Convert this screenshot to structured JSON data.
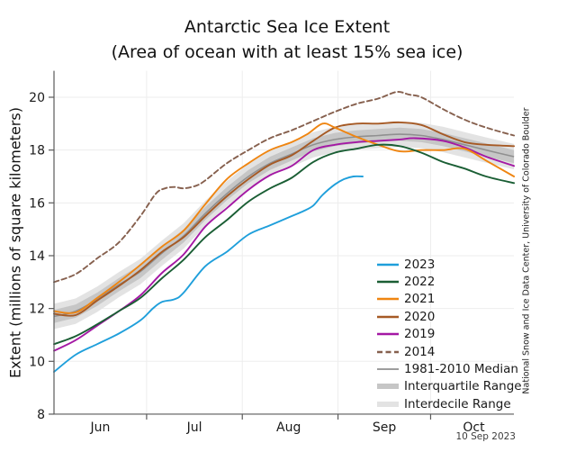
{
  "chart": {
    "title": "Antarctic Sea Ice Extent",
    "subtitle": "(Area of ocean with at least 15% sea ice)",
    "y_axis_label": "Extent (millions of square kilometers)",
    "credit": "National Snow and Ice Data Center, University of Colorado Boulder",
    "date_label": "10 Sep 2023"
  },
  "colors": {
    "y2023": "#1f9fdb",
    "y2022": "#1a5e34",
    "y2021": "#ef8511",
    "y2020": "#a65a25",
    "y2019": "#a418a4",
    "y2014": "#86604e",
    "median": "#909090",
    "interquartile": "#c6c6c6",
    "interdecile": "#e3e3e3",
    "grid": "#ededed",
    "spine": "#5a5a5a",
    "text": "#1a1a1a"
  },
  "chart_data": {
    "type": "line",
    "title": "Antarctic Sea Ice Extent (Area of ocean with at least 15% sea ice)",
    "ylabel": "Extent (millions of square kilometers)",
    "x_units": "days since Jun 1",
    "xlim": [
      0,
      149
    ],
    "ylim": [
      8,
      21
    ],
    "grid": true,
    "y_ticks": [
      8,
      10,
      12,
      14,
      16,
      18,
      20
    ],
    "month_boundary_ticks": [
      30,
      61,
      92,
      122
    ],
    "month_labels": [
      {
        "text": "Jun",
        "d": 15
      },
      {
        "text": "Jul",
        "d": 45.5
      },
      {
        "text": "Aug",
        "d": 76
      },
      {
        "text": "Sep",
        "d": 107
      },
      {
        "text": "Oct",
        "d": 136
      }
    ],
    "band_offsets": {
      "interquartile": 0.25,
      "interdecile": 0.48
    },
    "median_series": {
      "name": "1981-2010 Median",
      "points": [
        [
          0,
          11.7
        ],
        [
          7,
          11.9
        ],
        [
          14,
          12.35
        ],
        [
          21,
          12.9
        ],
        [
          28,
          13.4
        ],
        [
          35,
          14.1
        ],
        [
          42,
          14.75
        ],
        [
          49,
          15.6
        ],
        [
          56,
          16.35
        ],
        [
          63,
          17.0
        ],
        [
          70,
          17.5
        ],
        [
          77,
          17.85
        ],
        [
          84,
          18.2
        ],
        [
          91,
          18.4
        ],
        [
          98,
          18.5
        ],
        [
          105,
          18.55
        ],
        [
          112,
          18.6
        ],
        [
          119,
          18.55
        ],
        [
          126,
          18.4
        ],
        [
          133,
          18.2
        ],
        [
          140,
          18.0
        ],
        [
          149,
          17.75
        ]
      ]
    },
    "series": [
      {
        "name": "2014",
        "color_key": "y2014",
        "dashed": true,
        "points": [
          [
            0,
            13.0
          ],
          [
            7,
            13.3
          ],
          [
            14,
            13.9
          ],
          [
            21,
            14.5
          ],
          [
            28,
            15.5
          ],
          [
            33,
            16.35
          ],
          [
            36,
            16.55
          ],
          [
            39,
            16.6
          ],
          [
            42,
            16.55
          ],
          [
            46,
            16.65
          ],
          [
            49,
            16.85
          ],
          [
            56,
            17.5
          ],
          [
            63,
            18.0
          ],
          [
            70,
            18.45
          ],
          [
            77,
            18.75
          ],
          [
            84,
            19.1
          ],
          [
            91,
            19.45
          ],
          [
            98,
            19.75
          ],
          [
            105,
            19.95
          ],
          [
            111,
            20.2
          ],
          [
            115,
            20.1
          ],
          [
            119,
            20.0
          ],
          [
            126,
            19.55
          ],
          [
            133,
            19.15
          ],
          [
            140,
            18.85
          ],
          [
            149,
            18.55
          ]
        ]
      },
      {
        "name": "2019",
        "color_key": "y2019",
        "dashed": false,
        "points": [
          [
            0,
            10.4
          ],
          [
            7,
            10.8
          ],
          [
            14,
            11.35
          ],
          [
            21,
            11.9
          ],
          [
            28,
            12.5
          ],
          [
            35,
            13.35
          ],
          [
            42,
            14.05
          ],
          [
            49,
            15.1
          ],
          [
            56,
            15.8
          ],
          [
            63,
            16.5
          ],
          [
            70,
            17.05
          ],
          [
            77,
            17.4
          ],
          [
            84,
            18.0
          ],
          [
            91,
            18.2
          ],
          [
            98,
            18.3
          ],
          [
            105,
            18.35
          ],
          [
            112,
            18.4
          ],
          [
            117,
            18.45
          ],
          [
            126,
            18.35
          ],
          [
            133,
            18.1
          ],
          [
            140,
            17.75
          ],
          [
            149,
            17.4
          ]
        ]
      },
      {
        "name": "2020",
        "color_key": "y2020",
        "dashed": false,
        "points": [
          [
            0,
            11.8
          ],
          [
            7,
            11.75
          ],
          [
            14,
            12.3
          ],
          [
            21,
            12.85
          ],
          [
            28,
            13.45
          ],
          [
            35,
            14.15
          ],
          [
            42,
            14.7
          ],
          [
            49,
            15.5
          ],
          [
            56,
            16.25
          ],
          [
            63,
            16.9
          ],
          [
            70,
            17.45
          ],
          [
            77,
            17.8
          ],
          [
            84,
            18.35
          ],
          [
            91,
            18.85
          ],
          [
            98,
            19.0
          ],
          [
            105,
            19.0
          ],
          [
            112,
            19.05
          ],
          [
            119,
            18.95
          ],
          [
            126,
            18.6
          ],
          [
            133,
            18.3
          ],
          [
            140,
            18.2
          ],
          [
            149,
            18.15
          ]
        ]
      },
      {
        "name": "2021",
        "color_key": "y2021",
        "dashed": false,
        "points": [
          [
            0,
            11.9
          ],
          [
            7,
            11.85
          ],
          [
            14,
            12.4
          ],
          [
            21,
            13.0
          ],
          [
            28,
            13.65
          ],
          [
            35,
            14.35
          ],
          [
            42,
            14.95
          ],
          [
            49,
            15.95
          ],
          [
            56,
            16.9
          ],
          [
            63,
            17.5
          ],
          [
            70,
            18.0
          ],
          [
            77,
            18.3
          ],
          [
            82,
            18.6
          ],
          [
            87,
            19.0
          ],
          [
            91,
            18.85
          ],
          [
            98,
            18.5
          ],
          [
            105,
            18.2
          ],
          [
            112,
            17.95
          ],
          [
            119,
            18.0
          ],
          [
            126,
            18.0
          ],
          [
            133,
            18.05
          ],
          [
            140,
            17.6
          ],
          [
            149,
            17.0
          ]
        ]
      },
      {
        "name": "2022",
        "color_key": "y2022",
        "dashed": false,
        "points": [
          [
            0,
            10.65
          ],
          [
            7,
            10.95
          ],
          [
            14,
            11.4
          ],
          [
            21,
            11.9
          ],
          [
            28,
            12.4
          ],
          [
            35,
            13.15
          ],
          [
            42,
            13.85
          ],
          [
            49,
            14.7
          ],
          [
            56,
            15.35
          ],
          [
            63,
            16.05
          ],
          [
            70,
            16.55
          ],
          [
            77,
            16.95
          ],
          [
            84,
            17.55
          ],
          [
            91,
            17.9
          ],
          [
            98,
            18.05
          ],
          [
            105,
            18.2
          ],
          [
            112,
            18.15
          ],
          [
            119,
            17.9
          ],
          [
            126,
            17.55
          ],
          [
            133,
            17.3
          ],
          [
            140,
            17.0
          ],
          [
            149,
            16.75
          ]
        ]
      },
      {
        "name": "2023",
        "color_key": "y2023",
        "dashed": false,
        "points": [
          [
            0,
            9.6
          ],
          [
            7,
            10.25
          ],
          [
            14,
            10.65
          ],
          [
            21,
            11.05
          ],
          [
            28,
            11.55
          ],
          [
            32,
            12.0
          ],
          [
            35,
            12.25
          ],
          [
            39,
            12.35
          ],
          [
            42,
            12.6
          ],
          [
            49,
            13.6
          ],
          [
            56,
            14.15
          ],
          [
            63,
            14.8
          ],
          [
            70,
            15.15
          ],
          [
            77,
            15.5
          ],
          [
            81,
            15.7
          ],
          [
            84,
            15.9
          ],
          [
            87,
            16.3
          ],
          [
            91,
            16.7
          ],
          [
            94,
            16.9
          ],
          [
            97,
            17.0
          ],
          [
            100,
            17.0
          ]
        ]
      }
    ]
  },
  "legend": {
    "items": [
      {
        "label": "2023",
        "color_key": "y2023",
        "style": "line"
      },
      {
        "label": "2022",
        "color_key": "y2022",
        "style": "line"
      },
      {
        "label": "2021",
        "color_key": "y2021",
        "style": "line"
      },
      {
        "label": "2020",
        "color_key": "y2020",
        "style": "line"
      },
      {
        "label": "2019",
        "color_key": "y2019",
        "style": "line"
      },
      {
        "label": "2014",
        "color_key": "y2014",
        "style": "dashed"
      },
      {
        "label": "1981-2010 Median",
        "color_key": "median",
        "style": "median"
      },
      {
        "label": "Interquartile Range",
        "color_key": "interquartile",
        "style": "thick"
      },
      {
        "label": "Interdecile Range",
        "color_key": "interdecile",
        "style": "thick"
      }
    ]
  }
}
